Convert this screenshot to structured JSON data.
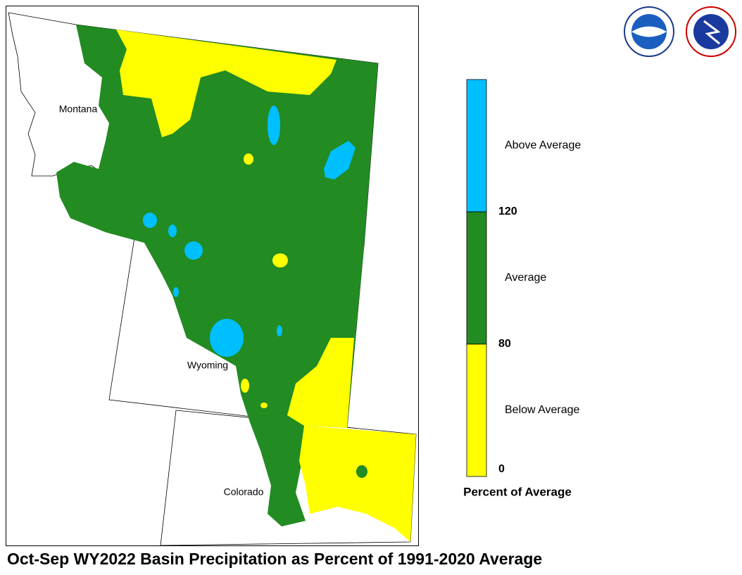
{
  "map": {
    "title": "Oct-Sep WY2022 Basin Precipitation as Percent of 1991-2020 Average",
    "states": [
      "Montana",
      "Wyoming",
      "Colorado"
    ],
    "legend": {
      "title": "Percent of Average",
      "categories": [
        {
          "label": "Above Average",
          "color": "#00bfff"
        },
        {
          "label": "Average",
          "color": "#228b22"
        },
        {
          "label": "Below Average",
          "color": "#ffff00"
        }
      ],
      "ticks": [
        120,
        80,
        0
      ]
    }
  }
}
